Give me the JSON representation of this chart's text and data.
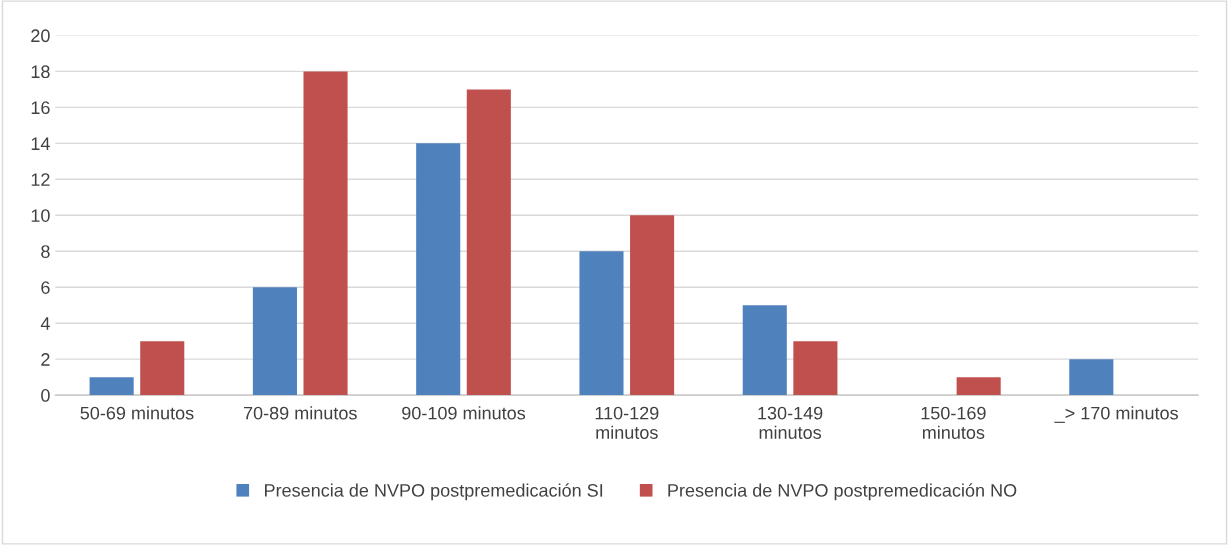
{
  "chart_data": {
    "type": "bar",
    "categories": [
      "50-69 minutos",
      "70-89 minutos",
      "90-109 minutos",
      "110-129 minutos",
      "130-149 minutos",
      "150-169 minutos",
      "_> 170 minutos"
    ],
    "series": [
      {
        "name": "Presencia de NVPO postpremedicación SI",
        "color": "#4f81bd",
        "values": [
          1,
          6,
          14,
          8,
          5,
          0,
          2
        ]
      },
      {
        "name": "Presencia de NVPO postpremedicación NO",
        "color": "#c0504d",
        "values": [
          3,
          18,
          17,
          10,
          3,
          1,
          0
        ]
      }
    ],
    "ylim": [
      0,
      20
    ],
    "yticks": [
      0,
      2,
      4,
      6,
      8,
      10,
      12,
      14,
      16,
      18,
      20
    ],
    "grid": "y",
    "legend": "bottom"
  }
}
